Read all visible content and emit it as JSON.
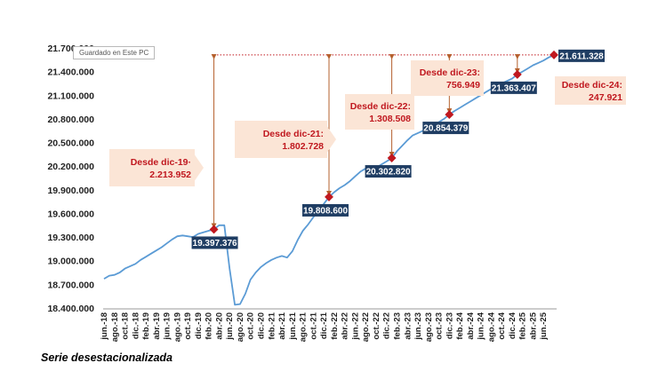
{
  "tooltip": "Guardado en Este PC",
  "footnote": "Serie desestacionalizada",
  "colors": {
    "line": "#5b9bd5",
    "marker": "#c0181f",
    "label_bg": "#1f3d63",
    "ann_bg": "#fbe5d6",
    "arrow": "#b5602d",
    "ref_line": "#c0181f"
  },
  "chart_data": {
    "type": "line",
    "ylim": [
      18400000,
      21700000
    ],
    "yticks": [
      "18.400.000",
      "18.700.000",
      "19.000.000",
      "19.300.000",
      "19.600.000",
      "19.900.000",
      "20.200.000",
      "20.500.000",
      "20.800.000",
      "21.100.000",
      "21.400.000",
      "21.700.000"
    ],
    "ytick_values": [
      18400000,
      18700000,
      19000000,
      19300000,
      19600000,
      19900000,
      20200000,
      20500000,
      20800000,
      21100000,
      21400000,
      21700000
    ],
    "xtick_labels": [
      "jun.-18",
      "ago.-18",
      "oct.-18",
      "dic.-18",
      "feb.-19",
      "abr.-19",
      "jun.-19",
      "ago.-19",
      "oct.-19",
      "dic.-19",
      "feb.-20",
      "abr.-20",
      "jun.-20",
      "ago.-20",
      "oct.-20",
      "dic.-20",
      "feb.-21",
      "abr.-21",
      "jun.-21",
      "ago.-21",
      "oct.-21",
      "dic.-21",
      "feb.-22",
      "abr.-22",
      "jun.-22",
      "ago.-22",
      "oct.-22",
      "dic.-22",
      "feb.-23",
      "abr.-23",
      "jun.-23",
      "ago.-23",
      "oct.-23",
      "dic.-23",
      "feb.-24",
      "abr.-24",
      "jun.-24",
      "ago.-24",
      "oct.-24",
      "dic.-24",
      "feb.-25",
      "abr.-25",
      "jun.-25"
    ],
    "series": [
      {
        "values": [
          18770000,
          18810000,
          18820000,
          18850000,
          18900000,
          18930000,
          18960000,
          19010000,
          19050000,
          19090000,
          19130000,
          19170000,
          19220000,
          19270000,
          19310000,
          19320000,
          19310000,
          19300000,
          19340000,
          19360000,
          19380000,
          19397376,
          19450000,
          19450000,
          18900000,
          18440000,
          18450000,
          18580000,
          18760000,
          18850000,
          18920000,
          18970000,
          19010000,
          19040000,
          19060000,
          19040000,
          19120000,
          19260000,
          19380000,
          19460000,
          19550000,
          19640000,
          19720000,
          19808600,
          19870000,
          19920000,
          19960000,
          20010000,
          20070000,
          20130000,
          20170000,
          20170000,
          20180000,
          20220000,
          20260000,
          20302820,
          20390000,
          20460000,
          20530000,
          20590000,
          20620000,
          20650000,
          20680000,
          20720000,
          20760000,
          20800000,
          20854379,
          20900000,
          20940000,
          20980000,
          21020000,
          21060000,
          21100000,
          21140000,
          21180000,
          21210000,
          21250000,
          21280000,
          21310000,
          21363407,
          21400000,
          21440000,
          21480000,
          21510000,
          21540000,
          21580000,
          21611328
        ]
      }
    ],
    "points": [
      {
        "index": 21,
        "value": 19397376,
        "label": "19.397.376"
      },
      {
        "index": 43,
        "value": 19808600,
        "label": "19.808.600"
      },
      {
        "index": 55,
        "value": 20302820,
        "label": "20.302.820"
      },
      {
        "index": 66,
        "value": 20854379,
        "label": "20.854.379"
      },
      {
        "index": 79,
        "value": 21363407,
        "label": "21.363.407"
      },
      {
        "index": 86,
        "value": 21611328,
        "label": "21.611.328"
      }
    ],
    "annotations": [
      {
        "from_index": 21,
        "line1": "Desde dic-19·",
        "line2": "2.213.952"
      },
      {
        "from_index": 43,
        "line1": "Desde dic-21:",
        "line2": "1.802.728"
      },
      {
        "from_index": 55,
        "line1": "Desde dic-22:",
        "line2": "1.308.508"
      },
      {
        "from_index": 66,
        "line1": "Desde dic-23:",
        "line2": "756.949"
      },
      {
        "from_index": 79,
        "line1": "Desde dic-24:",
        "line2": "247.921"
      }
    ]
  }
}
